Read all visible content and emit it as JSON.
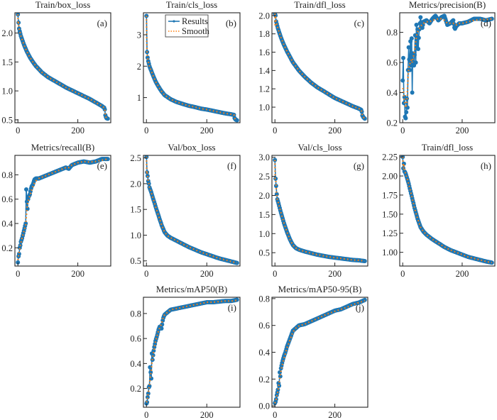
{
  "figure": {
    "colors": {
      "results": "#1f77b4",
      "smooth": "#ff7f0e",
      "axis": "#222222"
    },
    "legend": {
      "results_label": "Results",
      "smooth_label": "Smooth",
      "placement": "top-center of panel (b)"
    }
  },
  "chart_data": [
    {
      "id": "a",
      "type": "line",
      "title": "Train/box_loss",
      "panel_label": "(a)",
      "xlim": [
        -10,
        310
      ],
      "ylim": [
        0.45,
        2.35
      ],
      "xticks": [
        0,
        200
      ],
      "yticks": [
        0.5,
        1.0,
        1.5,
        2.0
      ],
      "ytick_labels": [
        "0.5",
        "1.0",
        "1.5",
        "2.0"
      ],
      "x": [
        0,
        1,
        2,
        3,
        5,
        10,
        20,
        30,
        40,
        50,
        60,
        80,
        100,
        120,
        140,
        160,
        180,
        200,
        220,
        240,
        260,
        280,
        288,
        290,
        292,
        295,
        300
      ],
      "values": [
        2.32,
        2.15,
        2.18,
        2.1,
        2.05,
        1.95,
        1.8,
        1.68,
        1.58,
        1.5,
        1.43,
        1.32,
        1.24,
        1.18,
        1.12,
        1.06,
        1.01,
        0.96,
        0.91,
        0.86,
        0.8,
        0.74,
        0.71,
        0.68,
        0.58,
        0.53,
        0.52
      ]
    },
    {
      "id": "b",
      "type": "line",
      "title": "Train/cls_loss",
      "panel_label": "(b)",
      "xlim": [
        -10,
        310
      ],
      "ylim": [
        0.2,
        3.7
      ],
      "xticks": [
        0,
        200
      ],
      "yticks": [
        1,
        2,
        3
      ],
      "ytick_labels": [
        "1",
        "2",
        "3"
      ],
      "x": [
        0,
        1,
        2,
        3,
        5,
        10,
        20,
        30,
        40,
        50,
        60,
        80,
        100,
        120,
        140,
        160,
        180,
        200,
        220,
        240,
        260,
        280,
        290,
        292,
        295,
        300
      ],
      "values": [
        3.6,
        2.75,
        2.45,
        2.35,
        2.2,
        2.0,
        1.75,
        1.52,
        1.35,
        1.2,
        1.08,
        0.95,
        0.86,
        0.8,
        0.74,
        0.7,
        0.65,
        0.62,
        0.58,
        0.54,
        0.5,
        0.47,
        0.45,
        0.35,
        0.3,
        0.28
      ]
    },
    {
      "id": "c",
      "type": "line",
      "title": "Train/dfl_loss",
      "panel_label": "(c)",
      "xlim": [
        -10,
        310
      ],
      "ylim": [
        0.83,
        2.03
      ],
      "xticks": [
        0,
        200
      ],
      "yticks": [
        1.0,
        1.2,
        1.4,
        1.6,
        1.8,
        2.0
      ],
      "ytick_labels": [
        "1.0",
        "1.2",
        "1.4",
        "1.6",
        "1.8",
        "2.0"
      ],
      "x": [
        0,
        1,
        2,
        3,
        5,
        10,
        20,
        30,
        40,
        50,
        60,
        80,
        100,
        120,
        140,
        160,
        180,
        200,
        220,
        240,
        260,
        280,
        288,
        290,
        292,
        295,
        300
      ],
      "values": [
        2.02,
        1.88,
        2.0,
        1.95,
        1.92,
        1.86,
        1.76,
        1.68,
        1.61,
        1.55,
        1.49,
        1.4,
        1.33,
        1.27,
        1.22,
        1.18,
        1.14,
        1.1,
        1.07,
        1.04,
        1.01,
        0.985,
        0.97,
        0.95,
        0.91,
        0.89,
        0.875
      ]
    },
    {
      "id": "d",
      "type": "line",
      "title": "Metrics/precision(B)",
      "panel_label": "(d)",
      "xlim": [
        -10,
        310
      ],
      "ylim": [
        0.2,
        0.93
      ],
      "xticks": [
        0,
        200
      ],
      "yticks": [
        0.2,
        0.4,
        0.6,
        0.8
      ],
      "ytick_labels": [
        "0.2",
        "0.4",
        "0.6",
        "0.8"
      ],
      "x": [
        0,
        2,
        4,
        6,
        8,
        10,
        12,
        14,
        16,
        18,
        20,
        22,
        24,
        26,
        28,
        30,
        32,
        34,
        36,
        38,
        40,
        42,
        44,
        46,
        48,
        50,
        52,
        55,
        58,
        60,
        65,
        70,
        80,
        90,
        100,
        110,
        120,
        130,
        140,
        150,
        160,
        170,
        175,
        180,
        190,
        200,
        220,
        240,
        260,
        280,
        300
      ],
      "values": [
        0.48,
        0.63,
        0.33,
        0.37,
        0.24,
        0.23,
        0.27,
        0.36,
        0.3,
        0.55,
        0.7,
        0.62,
        0.55,
        0.74,
        0.58,
        0.76,
        0.4,
        0.66,
        0.6,
        0.58,
        0.65,
        0.78,
        0.6,
        0.85,
        0.7,
        0.82,
        0.69,
        0.8,
        0.86,
        0.9,
        0.82,
        0.87,
        0.88,
        0.86,
        0.89,
        0.91,
        0.88,
        0.9,
        0.91,
        0.85,
        0.86,
        0.88,
        0.82,
        0.84,
        0.86,
        0.86,
        0.87,
        0.89,
        0.89,
        0.88,
        0.89
      ],
      "smooth": [
        0.43,
        0.42,
        0.38,
        0.35,
        0.32,
        0.3,
        0.31,
        0.34,
        0.42,
        0.5,
        0.55,
        0.58,
        0.59,
        0.6,
        0.61,
        0.62,
        0.6,
        0.62,
        0.64,
        0.66,
        0.68,
        0.71,
        0.74,
        0.77,
        0.79,
        0.8,
        0.81,
        0.82,
        0.83,
        0.84,
        0.85,
        0.86,
        0.87,
        0.87,
        0.88,
        0.885,
        0.89,
        0.89,
        0.88,
        0.86,
        0.86,
        0.86,
        0.85,
        0.85,
        0.86,
        0.86,
        0.87,
        0.88,
        0.885,
        0.885,
        0.89
      ]
    },
    {
      "id": "e",
      "type": "line",
      "title": "Metrics/recall(B)",
      "panel_label": "(e)",
      "xlim": [
        -10,
        310
      ],
      "ylim": [
        0.05,
        0.96
      ],
      "xticks": [
        0,
        200
      ],
      "yticks": [
        0.2,
        0.4,
        0.6,
        0.8
      ],
      "ytick_labels": [
        "0.2",
        "0.4",
        "0.6",
        "0.8"
      ],
      "x": [
        0,
        2,
        4,
        6,
        8,
        10,
        14,
        18,
        22,
        26,
        28,
        30,
        32,
        34,
        36,
        40,
        45,
        50,
        55,
        60,
        70,
        80,
        100,
        120,
        140,
        160,
        170,
        180,
        200,
        220,
        240,
        260,
        280,
        300
      ],
      "values": [
        0.08,
        0.13,
        0.15,
        0.2,
        0.22,
        0.25,
        0.28,
        0.32,
        0.36,
        0.4,
        0.68,
        0.58,
        0.52,
        0.6,
        0.62,
        0.64,
        0.7,
        0.72,
        0.76,
        0.77,
        0.77,
        0.78,
        0.8,
        0.82,
        0.84,
        0.86,
        0.85,
        0.88,
        0.9,
        0.91,
        0.9,
        0.91,
        0.93,
        0.93
      ],
      "smooth": [
        0.1,
        0.13,
        0.16,
        0.19,
        0.22,
        0.24,
        0.28,
        0.32,
        0.35,
        0.39,
        0.45,
        0.52,
        0.56,
        0.58,
        0.6,
        0.63,
        0.67,
        0.7,
        0.73,
        0.75,
        0.77,
        0.78,
        0.8,
        0.82,
        0.84,
        0.86,
        0.86,
        0.88,
        0.9,
        0.91,
        0.905,
        0.91,
        0.92,
        0.93
      ]
    },
    {
      "id": "f",
      "type": "line",
      "title": "Val/box_loss",
      "panel_label": "(f)",
      "xlim": [
        -10,
        310
      ],
      "ylim": [
        0.4,
        2.55
      ],
      "xticks": [
        0,
        200
      ],
      "yticks": [
        0.5,
        1.0,
        1.5,
        2.0,
        2.5
      ],
      "ytick_labels": [
        "0.5",
        "1.0",
        "1.5",
        "2.0",
        "2.5"
      ],
      "x": [
        0,
        1,
        2,
        4,
        6,
        8,
        10,
        15,
        20,
        25,
        30,
        40,
        50,
        60,
        70,
        80,
        100,
        120,
        140,
        160,
        180,
        200,
        220,
        240,
        260,
        280,
        300
      ],
      "values": [
        2.52,
        2.2,
        2.22,
        2.15,
        2.05,
        2.0,
        1.93,
        1.85,
        1.75,
        1.66,
        1.56,
        1.38,
        1.2,
        1.06,
        0.99,
        0.95,
        0.89,
        0.83,
        0.77,
        0.72,
        0.67,
        0.63,
        0.59,
        0.55,
        0.52,
        0.49,
        0.46
      ]
    },
    {
      "id": "g",
      "type": "line",
      "title": "Val/cls_loss",
      "panel_label": "(g)",
      "xlim": [
        -10,
        310
      ],
      "ylim": [
        0.15,
        3.05
      ],
      "xticks": [
        0,
        200
      ],
      "yticks": [
        0.5,
        1.0,
        1.5,
        2.0,
        2.5,
        3.0
      ],
      "ytick_labels": [
        "0.5",
        "1.0",
        "1.5",
        "2.0",
        "2.5",
        "3.0"
      ],
      "x": [
        0,
        1,
        2,
        3,
        5,
        8,
        10,
        15,
        20,
        25,
        30,
        40,
        50,
        60,
        70,
        80,
        100,
        120,
        140,
        160,
        180,
        200,
        220,
        240,
        260,
        280,
        300
      ],
      "values": [
        2.93,
        2.44,
        2.44,
        2.4,
        2.1,
        1.9,
        1.85,
        1.7,
        1.55,
        1.42,
        1.28,
        1.05,
        0.85,
        0.7,
        0.62,
        0.58,
        0.53,
        0.49,
        0.45,
        0.42,
        0.39,
        0.37,
        0.35,
        0.33,
        0.31,
        0.3,
        0.28
      ]
    },
    {
      "id": "h",
      "type": "line",
      "title": "Train/dfl_loss",
      "panel_label": "(h)",
      "xlim": [
        -10,
        310
      ],
      "ylim": [
        0.82,
        2.27
      ],
      "xticks": [
        0,
        200
      ],
      "yticks": [
        1.0,
        1.25,
        1.5,
        1.75,
        2.0,
        2.25
      ],
      "ytick_labels": [
        "1.00",
        "1.25",
        "1.50",
        "1.75",
        "2.00",
        "2.25"
      ],
      "x": [
        0,
        2,
        4,
        6,
        8,
        10,
        15,
        20,
        25,
        30,
        40,
        50,
        60,
        70,
        80,
        100,
        120,
        140,
        160,
        180,
        200,
        220,
        240,
        260,
        280,
        300
      ],
      "values": [
        2.25,
        2.1,
        2.16,
        2.06,
        2.05,
        2.03,
        1.97,
        1.9,
        1.82,
        1.74,
        1.58,
        1.44,
        1.33,
        1.27,
        1.23,
        1.17,
        1.12,
        1.07,
        1.03,
        1.0,
        0.97,
        0.94,
        0.92,
        0.9,
        0.88,
        0.865
      ]
    },
    {
      "id": "i",
      "type": "line",
      "title": "Metrics/mAP50(B)",
      "panel_label": "(i)",
      "xlim": [
        -10,
        310
      ],
      "ylim": [
        0.05,
        0.93
      ],
      "xticks": [
        0,
        200
      ],
      "yticks": [
        0.2,
        0.4,
        0.6,
        0.8
      ],
      "ytick_labels": [
        "0.2",
        "0.4",
        "0.6",
        "0.8"
      ],
      "x": [
        0,
        2,
        4,
        6,
        8,
        10,
        12,
        14,
        16,
        18,
        20,
        25,
        30,
        35,
        40,
        45,
        50,
        55,
        60,
        70,
        80,
        100,
        120,
        140,
        160,
        180,
        200,
        220,
        240,
        260,
        280,
        300
      ],
      "values": [
        0.08,
        0.09,
        0.13,
        0.16,
        0.21,
        0.22,
        0.37,
        0.33,
        0.28,
        0.48,
        0.43,
        0.52,
        0.58,
        0.62,
        0.67,
        0.7,
        0.68,
        0.76,
        0.79,
        0.81,
        0.83,
        0.84,
        0.85,
        0.86,
        0.87,
        0.88,
        0.89,
        0.89,
        0.895,
        0.9,
        0.9,
        0.91
      ],
      "smooth": [
        0.09,
        0.1,
        0.13,
        0.16,
        0.2,
        0.23,
        0.27,
        0.31,
        0.35,
        0.4,
        0.44,
        0.51,
        0.57,
        0.62,
        0.66,
        0.69,
        0.72,
        0.76,
        0.79,
        0.81,
        0.83,
        0.84,
        0.85,
        0.86,
        0.87,
        0.88,
        0.89,
        0.89,
        0.895,
        0.9,
        0.9,
        0.905
      ]
    },
    {
      "id": "j",
      "type": "line",
      "title": "Metrics/mAP50-95(B)",
      "panel_label": "(j)",
      "xlim": [
        -10,
        310
      ],
      "ylim": [
        -0.01,
        0.81
      ],
      "xticks": [
        0,
        200
      ],
      "yticks": [
        0.0,
        0.2,
        0.4,
        0.6,
        0.8
      ],
      "ytick_labels": [
        "0.0",
        "0.2",
        "0.4",
        "0.6",
        "0.8"
      ],
      "x": [
        0,
        2,
        4,
        6,
        8,
        10,
        12,
        14,
        16,
        18,
        20,
        25,
        30,
        35,
        40,
        45,
        50,
        55,
        60,
        70,
        80,
        100,
        120,
        140,
        160,
        180,
        200,
        220,
        240,
        260,
        280,
        300
      ],
      "values": [
        0.02,
        0.03,
        0.05,
        0.08,
        0.1,
        0.12,
        0.17,
        0.15,
        0.25,
        0.22,
        0.28,
        0.33,
        0.37,
        0.4,
        0.44,
        0.47,
        0.5,
        0.53,
        0.56,
        0.58,
        0.6,
        0.61,
        0.63,
        0.65,
        0.67,
        0.69,
        0.71,
        0.72,
        0.74,
        0.76,
        0.77,
        0.79
      ],
      "smooth": [
        0.02,
        0.035,
        0.05,
        0.07,
        0.09,
        0.11,
        0.14,
        0.17,
        0.2,
        0.23,
        0.26,
        0.31,
        0.35,
        0.39,
        0.43,
        0.46,
        0.49,
        0.52,
        0.55,
        0.58,
        0.595,
        0.61,
        0.63,
        0.65,
        0.67,
        0.69,
        0.705,
        0.72,
        0.735,
        0.755,
        0.77,
        0.785
      ]
    }
  ]
}
